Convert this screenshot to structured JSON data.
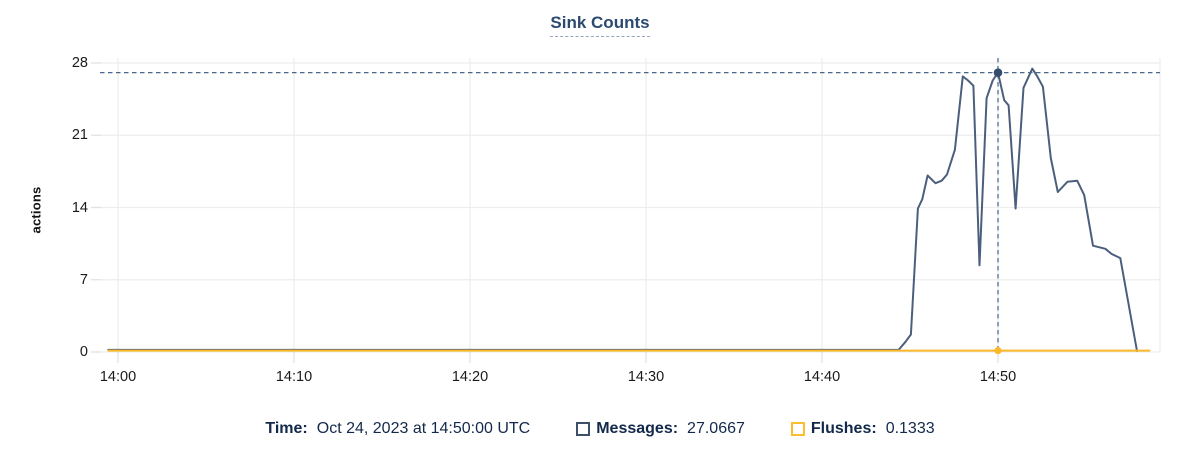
{
  "title": "Sink Counts",
  "y_axis_title": "actions",
  "colors": {
    "messages_line": "#4b5f7d",
    "flushes_line": "#fbb829",
    "cursor_dot": "#344d6e",
    "crosshair": "#47688c",
    "grid": "#ededed",
    "tick": "#e2e2e2",
    "axis_text": "#1a1a1a",
    "legend_text": "#13294b",
    "title_text": "#2b4a6f",
    "title_underline": "#97a6b8"
  },
  "legend": {
    "time_label": "Time:",
    "time_value": "Oct 24, 2023 at 14:50:00 UTC",
    "series": [
      {
        "label": "Messages:",
        "value": "27.0667",
        "marker_color": "#3e4f69"
      },
      {
        "label": "Flushes:",
        "value": "0.1333",
        "marker_color": "#fcbd2e"
      }
    ]
  },
  "chart_data": {
    "type": "line",
    "title": "Sink Counts",
    "xlabel": "",
    "ylabel": "actions",
    "ylim": [
      0,
      28
    ],
    "grid": true,
    "legend_position": "bottom",
    "y_ticks": [
      0,
      7,
      14,
      21,
      28
    ],
    "x_ticks": [
      {
        "t": 0,
        "label": "14:00"
      },
      {
        "t": 10,
        "label": "14:10"
      },
      {
        "t": 20,
        "label": "14:20"
      },
      {
        "t": 30,
        "label": "14:30"
      },
      {
        "t": 40,
        "label": "14:40"
      },
      {
        "t": 50,
        "label": "14:50"
      }
    ],
    "x_unit": "minutes after 14:00 UTC, Oct 24 2023",
    "cursor": {
      "t": 50,
      "time_label": "Oct 24, 2023 at 14:50:00 UTC",
      "messages": 27.0667,
      "flushes": 0.1333
    },
    "series": [
      {
        "name": "Messages",
        "color": "#4b5f7d",
        "points": [
          [
            -0.55,
            0.2
          ],
          [
            10,
            0.2
          ],
          [
            20,
            0.2
          ],
          [
            30,
            0.2
          ],
          [
            40,
            0.2
          ],
          [
            44.35,
            0.2
          ],
          [
            44.75,
            1.0
          ],
          [
            45.05,
            1.7
          ],
          [
            45.45,
            13.9
          ],
          [
            45.7,
            14.8
          ],
          [
            46.0,
            17.1
          ],
          [
            46.45,
            16.35
          ],
          [
            46.8,
            16.6
          ],
          [
            47.1,
            17.2
          ],
          [
            47.55,
            19.6
          ],
          [
            48.0,
            26.7
          ],
          [
            48.3,
            26.3
          ],
          [
            48.6,
            25.8
          ],
          [
            48.95,
            8.4
          ],
          [
            49.35,
            24.6
          ],
          [
            49.7,
            26.3
          ],
          [
            50.0,
            27.0667
          ],
          [
            50.35,
            24.4
          ],
          [
            50.6,
            23.9
          ],
          [
            51.0,
            13.9
          ],
          [
            51.45,
            25.6
          ],
          [
            51.95,
            27.45
          ],
          [
            52.2,
            26.8
          ],
          [
            52.55,
            25.7
          ],
          [
            53.0,
            18.8
          ],
          [
            53.4,
            15.5
          ],
          [
            53.95,
            16.5
          ],
          [
            54.5,
            16.6
          ],
          [
            54.9,
            15.2
          ],
          [
            55.4,
            10.3
          ],
          [
            56.1,
            10.0
          ],
          [
            56.45,
            9.5
          ],
          [
            56.95,
            9.1
          ],
          [
            57.9,
            0.1
          ]
        ]
      },
      {
        "name": "Flushes",
        "color": "#fbb829",
        "points": [
          [
            -0.55,
            0.1333
          ],
          [
            50.0,
            0.1333
          ],
          [
            58.6,
            0.1333
          ]
        ]
      }
    ]
  }
}
